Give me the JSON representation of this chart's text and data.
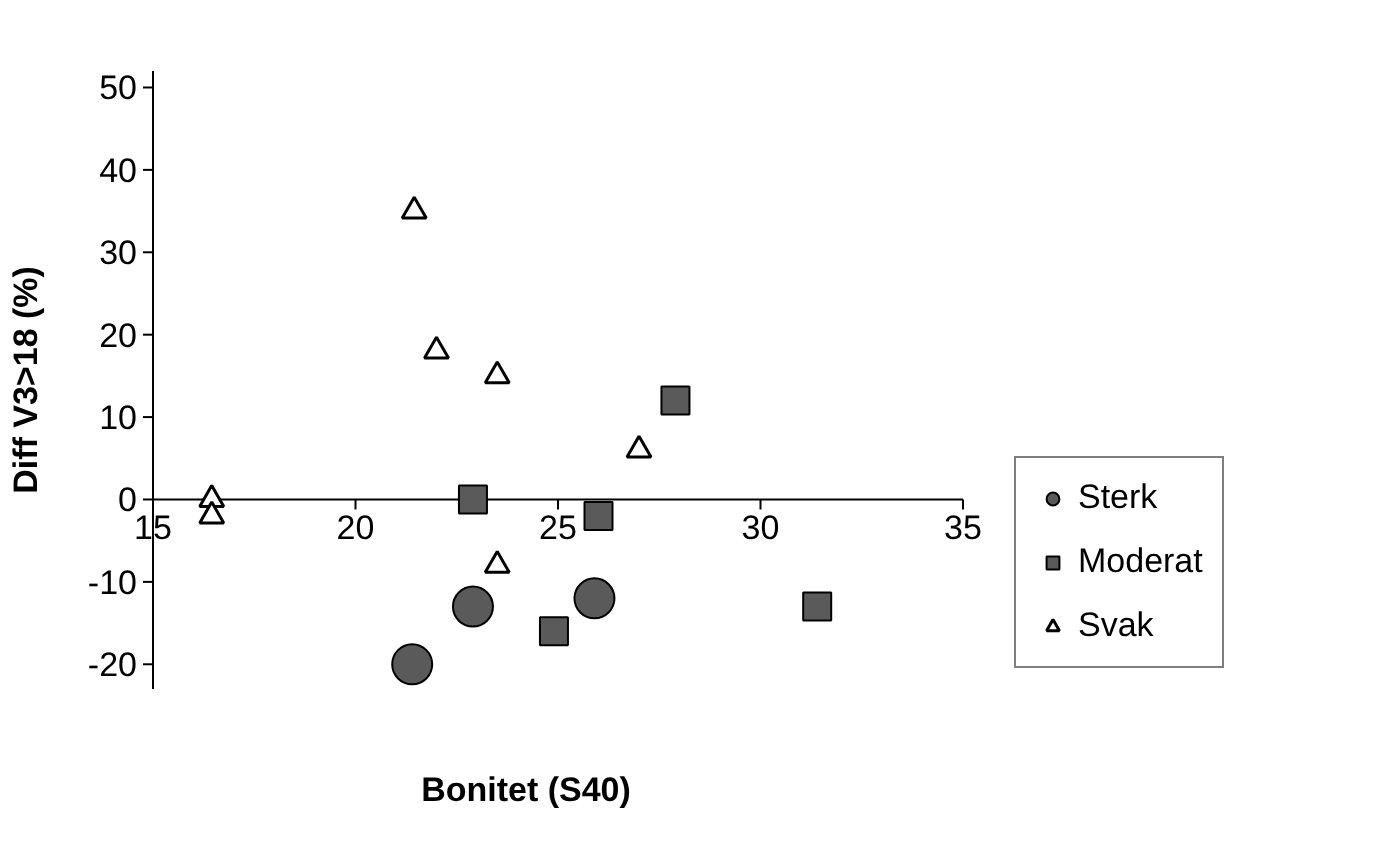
{
  "chart_data": {
    "type": "scatter",
    "xlabel": "Bonitet (S40)",
    "ylabel": "Diff V3>18 (%)",
    "xlim": [
      15,
      35
    ],
    "ylim": [
      -23,
      52
    ],
    "xticks": [
      15,
      20,
      25,
      30,
      35
    ],
    "yticks": [
      -20,
      -10,
      0,
      10,
      20,
      30,
      40,
      50
    ],
    "grid": false,
    "legend": "bottom right",
    "series": [
      {
        "name": "Sterk",
        "color": "#5a5a5a",
        "marker": "circle",
        "x": [
          21.4,
          22.9,
          25.9
        ],
        "values": [
          -20,
          -13,
          -12
        ]
      },
      {
        "name": "Moderat",
        "color": "#5a5a5a",
        "marker": "square",
        "x": [
          22.9,
          26.0,
          27.9,
          24.9,
          31.4
        ],
        "values": [
          0,
          -2,
          12,
          -16,
          -13
        ]
      },
      {
        "name": "Svak",
        "color": "#ffffff",
        "marker": "triangle",
        "x": [
          21.45,
          22.0,
          23.5,
          27.0,
          16.45,
          16.45,
          23.5
        ],
        "values": [
          35,
          18,
          15,
          6,
          0,
          -2,
          -8
        ]
      }
    ]
  }
}
